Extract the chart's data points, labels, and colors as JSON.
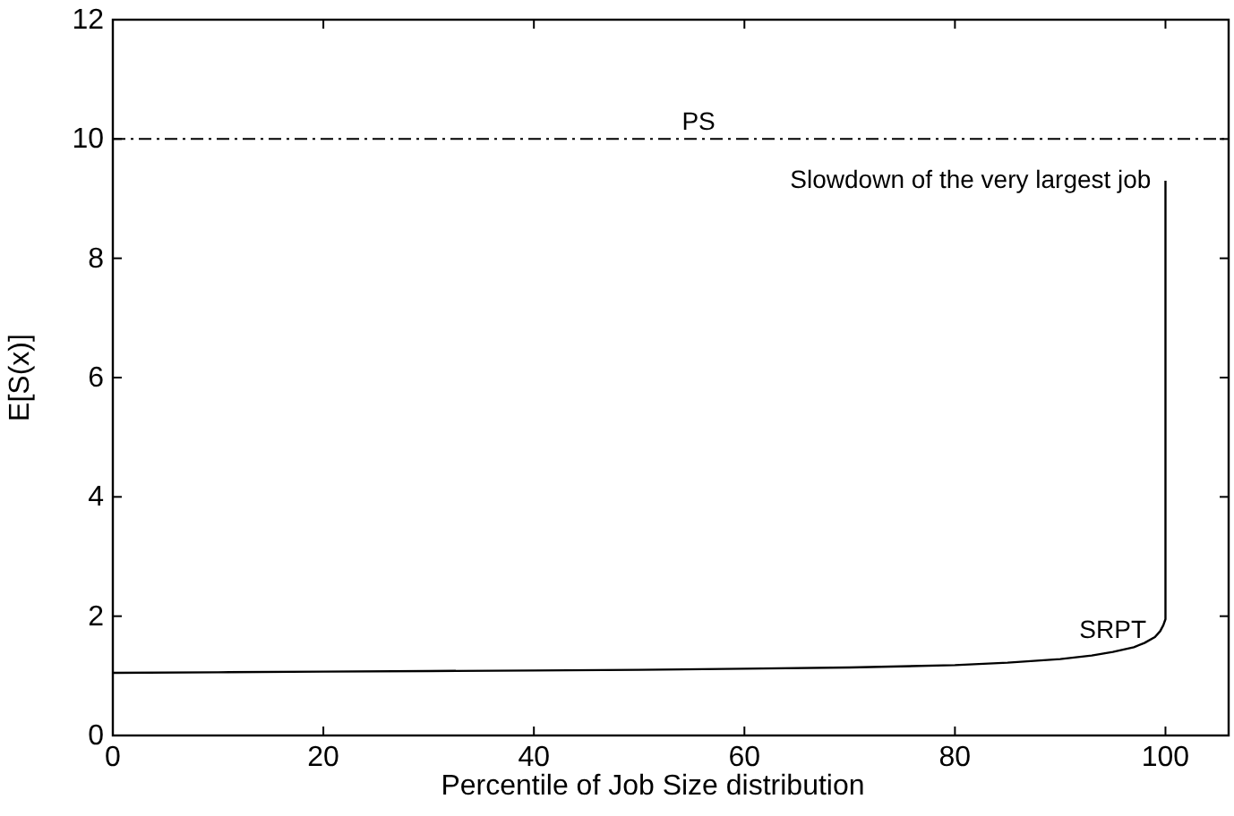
{
  "chart_data": {
    "type": "line",
    "xlabel": "Percentile of Job Size distribution",
    "ylabel": "E[S(x)]",
    "xlim": [
      0,
      106
    ],
    "xticks": [
      0,
      20,
      40,
      60,
      80,
      100
    ],
    "ylim": [
      0,
      12
    ],
    "yticks": [
      0,
      2,
      4,
      6,
      8,
      10,
      12
    ],
    "grid": false,
    "legend": false,
    "marker": "none",
    "series": [
      {
        "name": "SRPT",
        "color": "#000000",
        "line_style": "solid",
        "x": [
          0,
          10,
          20,
          30,
          40,
          50,
          60,
          70,
          80,
          85,
          90,
          93,
          95,
          97,
          98,
          99,
          99.5,
          99.8,
          100,
          100,
          100
        ],
        "values": [
          1.05,
          1.06,
          1.07,
          1.08,
          1.09,
          1.1,
          1.12,
          1.14,
          1.18,
          1.22,
          1.28,
          1.34,
          1.4,
          1.48,
          1.55,
          1.65,
          1.75,
          1.85,
          1.95,
          5,
          9.3
        ]
      }
    ],
    "ref_lines": [
      {
        "axis": "y",
        "value": 10,
        "label": "PS",
        "color": "#000000",
        "line_style": "dashed"
      }
    ],
    "annotations": [
      {
        "text": "Slowdown of the very largest job",
        "x": 100,
        "y": 9.3
      }
    ]
  }
}
